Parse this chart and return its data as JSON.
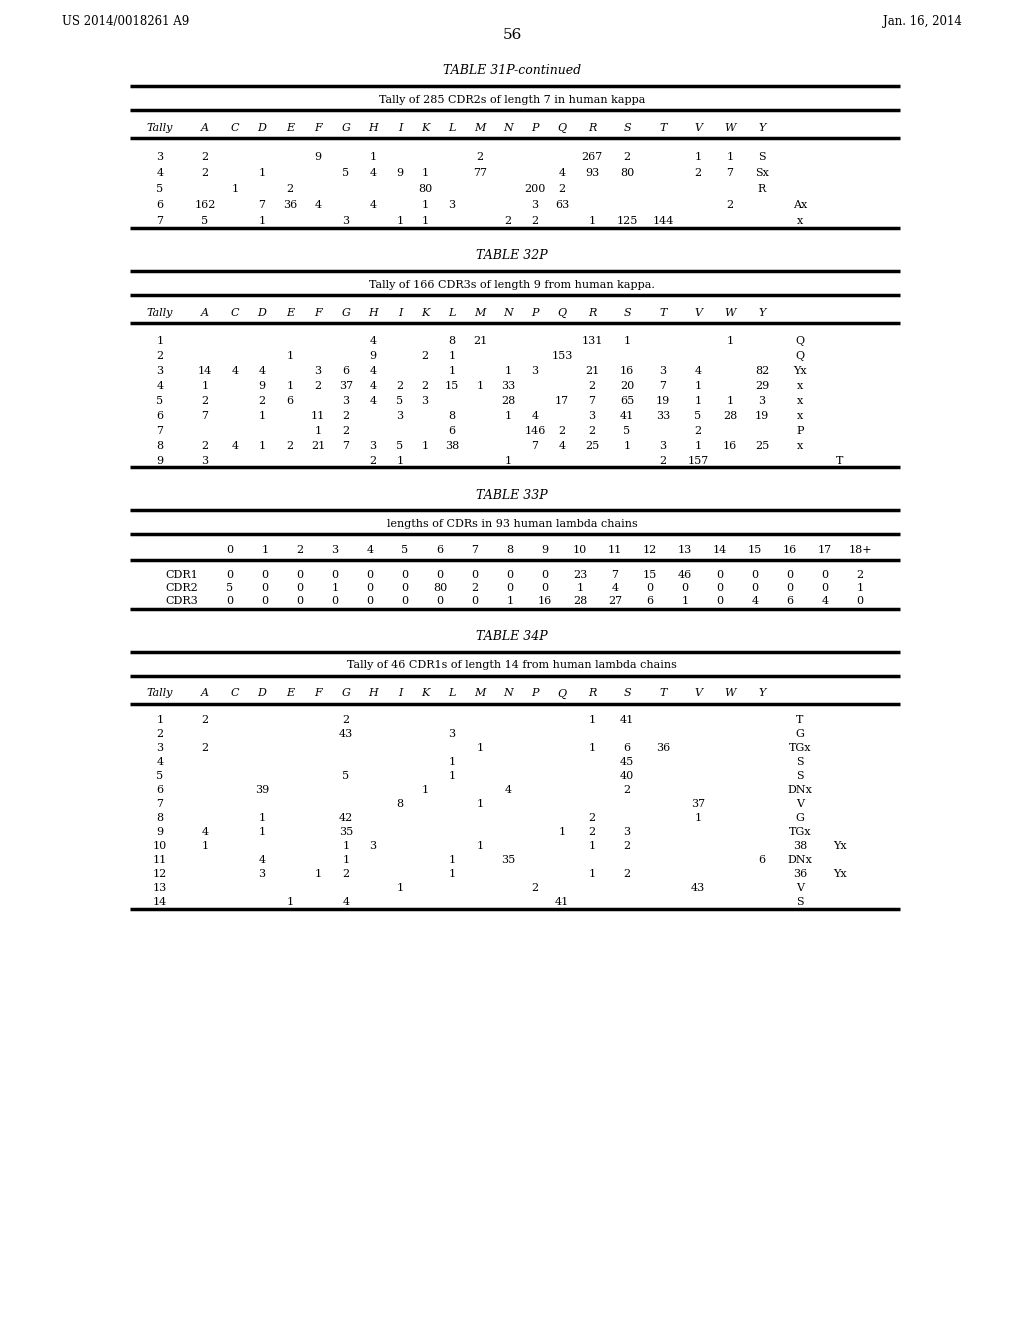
{
  "header_left": "US 2014/0018261 A9",
  "header_right": "Jan. 16, 2014",
  "page_number": "56",
  "table31p": {
    "title": "TABLE 31P-continued",
    "subtitle": "Tally of 285 CDR2s of length 7 in human kappa",
    "headers": [
      "Tally",
      "A",
      "C",
      "D",
      "E",
      "F",
      "G",
      "H",
      "I",
      "K",
      "L",
      "M",
      "N",
      "P",
      "Q",
      "R",
      "S",
      "T",
      "V",
      "W",
      "Y"
    ],
    "rows": [
      [
        "3",
        "2",
        "",
        "",
        "",
        "9",
        "",
        "1",
        "",
        "",
        "",
        "2",
        "",
        "",
        "",
        "267",
        "2",
        "",
        "1",
        "1",
        "S"
      ],
      [
        "4",
        "2",
        "",
        "1",
        "",
        "",
        "5",
        "4",
        "9",
        "1",
        "",
        "77",
        "",
        "",
        "4",
        "93",
        "80",
        "",
        "2",
        "7",
        "Sx"
      ],
      [
        "5",
        "",
        "1",
        "",
        "2",
        "",
        "",
        "",
        "",
        "80",
        "",
        "",
        "",
        "200",
        "2",
        "",
        "",
        "",
        "",
        "",
        "R"
      ],
      [
        "6",
        "162",
        "",
        "7",
        "36",
        "4",
        "",
        "4",
        "",
        "1",
        "3",
        "",
        "",
        "3",
        "63",
        "",
        "",
        "",
        "",
        "2",
        "",
        "Ax"
      ],
      [
        "7",
        "5",
        "",
        "1",
        "",
        "",
        "3",
        "",
        "1",
        "1",
        "",
        "",
        "2",
        "2",
        "",
        "1",
        "125",
        "144",
        "",
        "",
        "",
        "x"
      ]
    ]
  },
  "table32p": {
    "title": "TABLE 32P",
    "subtitle": "Tally of 166 CDR3s of length 9 from human kappa.",
    "headers": [
      "Tally",
      "A",
      "C",
      "D",
      "E",
      "F",
      "G",
      "H",
      "I",
      "K",
      "L",
      "M",
      "N",
      "P",
      "Q",
      "R",
      "S",
      "T",
      "V",
      "W",
      "Y"
    ],
    "rows": [
      [
        "1",
        "",
        "",
        "",
        "",
        "",
        "",
        "4",
        "",
        "",
        "8",
        "21",
        "",
        "",
        "",
        "131",
        "1",
        "",
        "",
        "1",
        "",
        "Q"
      ],
      [
        "2",
        "",
        "",
        "",
        "1",
        "",
        "",
        "9",
        "",
        "2",
        "1",
        "",
        "",
        "",
        "153",
        "",
        "",
        "",
        "",
        "",
        "",
        "Q"
      ],
      [
        "3",
        "14",
        "4",
        "4",
        "",
        "3",
        "6",
        "4",
        "",
        "",
        "1",
        "",
        "1",
        "3",
        "",
        "21",
        "16",
        "3",
        "4",
        "",
        "82",
        "Yx"
      ],
      [
        "4",
        "1",
        "",
        "9",
        "1",
        "2",
        "37",
        "4",
        "2",
        "2",
        "15",
        "1",
        "33",
        "",
        "",
        "2",
        "20",
        "7",
        "1",
        "",
        "29",
        "x"
      ],
      [
        "5",
        "2",
        "",
        "2",
        "6",
        "",
        "3",
        "4",
        "5",
        "3",
        "",
        "",
        "28",
        "",
        "17",
        "7",
        "65",
        "19",
        "1",
        "1",
        "3",
        "x"
      ],
      [
        "6",
        "7",
        "",
        "1",
        "",
        "11",
        "2",
        "",
        "3",
        "",
        "8",
        "",
        "1",
        "4",
        "",
        "3",
        "41",
        "33",
        "5",
        "28",
        "19",
        "x"
      ],
      [
        "7",
        "",
        "",
        "",
        "",
        "1",
        "2",
        "",
        "",
        "",
        "6",
        "",
        "",
        "146",
        "2",
        "2",
        "5",
        "",
        "2",
        "",
        "",
        "P"
      ],
      [
        "8",
        "2",
        "4",
        "1",
        "2",
        "21",
        "7",
        "3",
        "5",
        "1",
        "38",
        "",
        "",
        "7",
        "4",
        "25",
        "1",
        "3",
        "1",
        "16",
        "25",
        "x"
      ],
      [
        "9",
        "3",
        "",
        "",
        "",
        "",
        "",
        "2",
        "1",
        "",
        "",
        "",
        "1",
        "",
        "",
        "",
        "",
        "2",
        "157",
        "",
        "",
        "",
        "T"
      ]
    ]
  },
  "table33p": {
    "title": "TABLE 33P",
    "subtitle": "lengths of CDRs in 93 human lambda chains",
    "col_headers": [
      "",
      "0",
      "1",
      "2",
      "3",
      "4",
      "5",
      "6",
      "7",
      "8",
      "9",
      "10",
      "11",
      "12",
      "13",
      "14",
      "15",
      "16",
      "17",
      "18+"
    ],
    "rows": [
      [
        "CDR1",
        "0",
        "0",
        "0",
        "0",
        "0",
        "0",
        "0",
        "0",
        "0",
        "0",
        "23",
        "7",
        "15",
        "46",
        "0",
        "0",
        "0",
        "0",
        "2"
      ],
      [
        "CDR2",
        "5",
        "0",
        "0",
        "1",
        "0",
        "0",
        "80",
        "2",
        "0",
        "0",
        "1",
        "4",
        "0",
        "0",
        "0",
        "0",
        "0",
        "0",
        "1"
      ],
      [
        "CDR3",
        "0",
        "0",
        "0",
        "0",
        "0",
        "0",
        "0",
        "0",
        "1",
        "16",
        "28",
        "27",
        "6",
        "1",
        "0",
        "4",
        "6",
        "4",
        "0"
      ]
    ]
  },
  "table34p": {
    "title": "TABLE 34P",
    "subtitle": "Tally of 46 CDR1s of length 14 from human lambda chains",
    "headers": [
      "Tally",
      "A",
      "C",
      "D",
      "E",
      "F",
      "G",
      "H",
      "I",
      "K",
      "L",
      "M",
      "N",
      "P",
      "Q",
      "R",
      "S",
      "T",
      "V",
      "W",
      "Y"
    ],
    "rows": [
      [
        "1",
        "2",
        "",
        "",
        "",
        "",
        "2",
        "",
        "",
        "",
        "",
        "",
        "",
        "",
        "",
        "1",
        "41",
        "",
        "",
        "",
        "",
        "T"
      ],
      [
        "2",
        "",
        "",
        "",
        "",
        "",
        "43",
        "",
        "",
        "",
        "3",
        "",
        "",
        "",
        "",
        "",
        "",
        "",
        "",
        "",
        "",
        "G"
      ],
      [
        "3",
        "2",
        "",
        "",
        "",
        "",
        "",
        "",
        "",
        "",
        "",
        "1",
        "",
        "",
        "",
        "1",
        "6",
        "36",
        "",
        "",
        "",
        "TGx"
      ],
      [
        "4",
        "",
        "",
        "",
        "",
        "",
        "",
        "",
        "",
        "",
        "1",
        "",
        "",
        "",
        "",
        "",
        "45",
        "",
        "",
        "",
        "",
        "S"
      ],
      [
        "5",
        "",
        "",
        "",
        "",
        "",
        "5",
        "",
        "",
        "",
        "1",
        "",
        "",
        "",
        "",
        "",
        "40",
        "",
        "",
        "",
        "",
        "S"
      ],
      [
        "6",
        "",
        "",
        "39",
        "",
        "",
        "",
        "",
        "",
        "1",
        "",
        "",
        "4",
        "",
        "",
        "",
        "2",
        "",
        "",
        "",
        "",
        "DNx"
      ],
      [
        "7",
        "",
        "",
        "",
        "",
        "",
        "",
        "",
        "8",
        "",
        "",
        "1",
        "",
        "",
        "",
        "",
        "",
        "",
        "37",
        "",
        "",
        "V"
      ],
      [
        "8",
        "",
        "",
        "1",
        "",
        "",
        "42",
        "",
        "",
        "",
        "",
        "",
        "",
        "",
        "",
        "2",
        "",
        "",
        "1",
        "",
        "",
        "G"
      ],
      [
        "9",
        "4",
        "",
        "1",
        "",
        "",
        "35",
        "",
        "",
        "",
        "",
        "",
        "",
        "",
        "1",
        "2",
        "3",
        "",
        "",
        "",
        "",
        "TGx"
      ],
      [
        "10",
        "1",
        "",
        "",
        "",
        "",
        "1",
        "3",
        "",
        "",
        "",
        "1",
        "",
        "",
        "",
        "1",
        "2",
        "",
        "",
        "",
        "",
        "38",
        "Yx"
      ],
      [
        "11",
        "",
        "",
        "4",
        "",
        "",
        "1",
        "",
        "",
        "",
        "1",
        "",
        "35",
        "",
        "",
        "",
        "",
        "",
        "",
        "",
        "6",
        "DNx"
      ],
      [
        "12",
        "",
        "",
        "3",
        "",
        "1",
        "2",
        "",
        "",
        "",
        "1",
        "",
        "",
        "",
        "",
        "1",
        "2",
        "",
        "",
        "",
        "",
        "36",
        "Yx"
      ],
      [
        "13",
        "",
        "",
        "",
        "",
        "",
        "",
        "",
        "1",
        "",
        "",
        "",
        "",
        "2",
        "",
        "",
        "",
        "",
        "43",
        "",
        "",
        "V"
      ],
      [
        "14",
        "",
        "",
        "",
        "1",
        "",
        "4",
        "",
        "",
        "",
        "",
        "",
        "",
        "",
        "41",
        "",
        "",
        "",
        "",
        "",
        "",
        "S"
      ]
    ]
  }
}
